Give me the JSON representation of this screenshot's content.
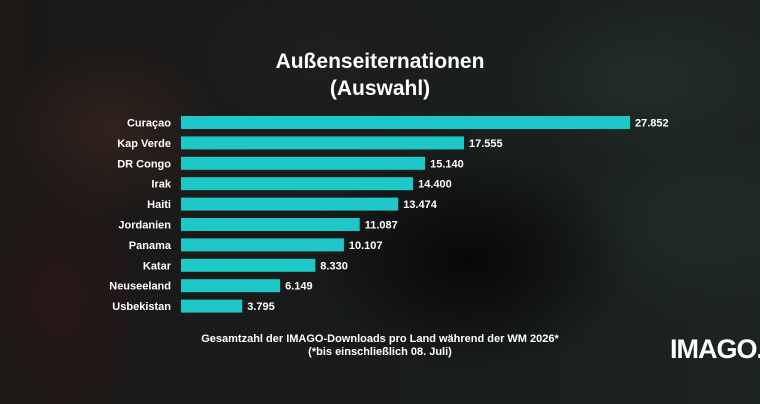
{
  "title": {
    "line1": "Außenseiternationen",
    "line2": "(Auswahl)"
  },
  "caption": {
    "line1": "Gesamtzahl der IMAGO-Downloads pro Land während der WM 2026*",
    "line2": "(*bis einschließlich 08. Juli)"
  },
  "logo": "IMAGO.",
  "colors": {
    "bar": "#1ec8c8",
    "text": "#ffffff"
  },
  "chart_data": {
    "type": "bar",
    "orientation": "horizontal",
    "title": "Außenseiternationen (Auswahl)",
    "categories": [
      "Curaçao",
      "Kap Verde",
      "DR Congo",
      "Irak",
      "Haiti",
      "Jordanien",
      "Panama",
      "Katar",
      "Neuseeland",
      "Usbekistan"
    ],
    "values": [
      27852,
      17555,
      15140,
      14400,
      13474,
      11087,
      10107,
      8330,
      6149,
      3795
    ],
    "value_labels": [
      "27.852",
      "17.555",
      "15.140",
      "14.400",
      "13.474",
      "11.087",
      "10.107",
      "8.330",
      "6.149",
      "3.795"
    ],
    "xlim": [
      0,
      27852
    ],
    "grid": false
  }
}
